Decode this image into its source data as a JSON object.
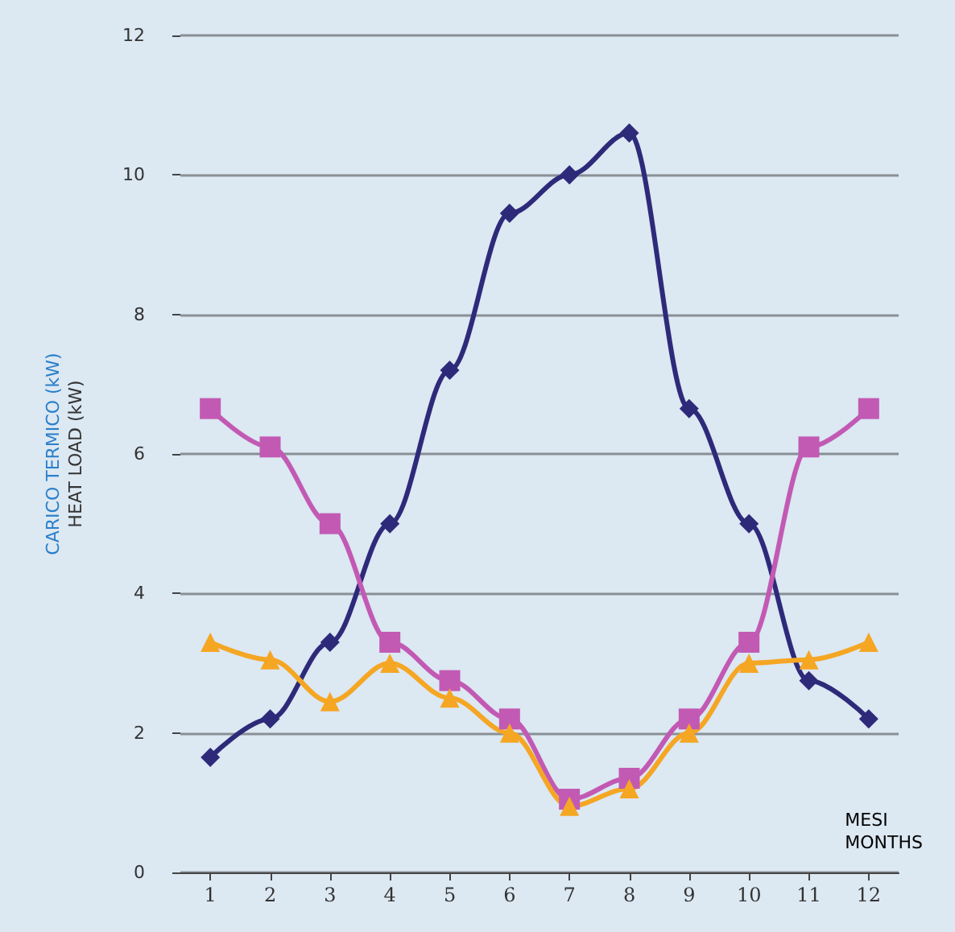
{
  "chart_data": {
    "type": "line",
    "ylabel": "CARICO TERMICO (kW)\nHEAT LOAD (kW)",
    "xlabel": "MESI\nMONTHS",
    "categories": [
      "1",
      "2",
      "3",
      "4",
      "5",
      "6",
      "7",
      "8",
      "9",
      "10",
      "11",
      "12"
    ],
    "series": [
      {
        "color": "#2e2a7a",
        "marker": "diamond",
        "values": [
          1.65,
          2.2,
          3.3,
          5.0,
          7.2,
          9.45,
          10.0,
          10.6,
          6.65,
          5.0,
          2.75,
          2.2
        ]
      },
      {
        "color": "#c25ab4",
        "marker": "square",
        "values": [
          6.65,
          6.1,
          5.0,
          3.3,
          2.75,
          2.2,
          1.05,
          1.35,
          2.2,
          3.3,
          6.1,
          6.65
        ]
      },
      {
        "color": "#f5a623",
        "marker": "triangle",
        "values": [
          3.3,
          3.05,
          2.45,
          3.0,
          2.5,
          2.0,
          0.95,
          1.2,
          2.0,
          3.0,
          3.05,
          3.3
        ]
      }
    ],
    "ylim": [
      0,
      12
    ],
    "yticks": [
      0,
      2,
      4,
      6,
      8,
      10,
      12
    ],
    "grid": "y"
  }
}
